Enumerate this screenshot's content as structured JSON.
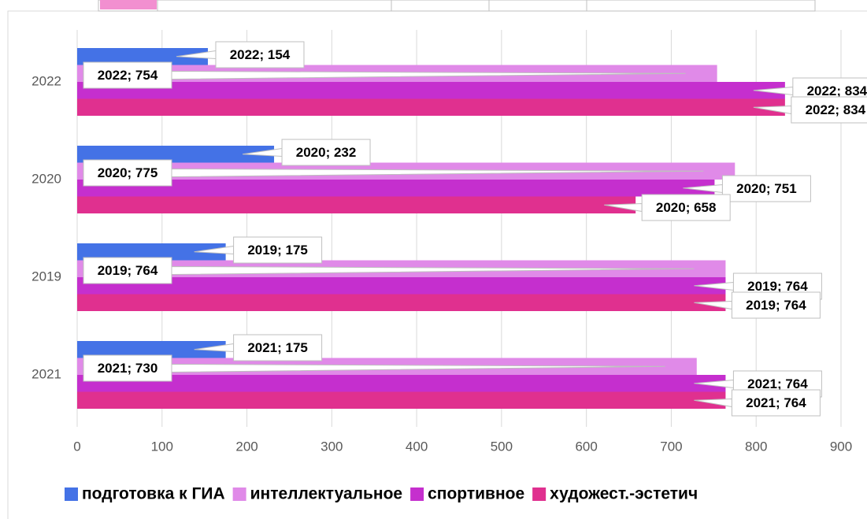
{
  "chart_data": {
    "type": "bar",
    "orientation": "horizontal",
    "categories": [
      "2022",
      "2020",
      "2019",
      "2021"
    ],
    "series": [
      {
        "name": "подготовка к ГИА",
        "color": "#4472e6",
        "values": [
          154,
          232,
          175,
          175
        ],
        "value_labels": [
          "2022; 154",
          "2020; 232",
          "2019; 175",
          "2021; 175"
        ]
      },
      {
        "name": "интеллектуальное",
        "color": "#e08ae8",
        "values": [
          754,
          775,
          764,
          730
        ],
        "value_labels": [
          "2022; 754",
          "2020; 775",
          "2019; 764",
          "2021; 730"
        ]
      },
      {
        "name": "спортивное",
        "color": "#c52fce",
        "values": [
          834,
          751,
          764,
          764
        ],
        "value_labels": [
          "2022; 834",
          "2020; 751",
          "2019; 764",
          "2021; 764"
        ]
      },
      {
        "name": "художест.-эстетич",
        "color": "#e0308f",
        "values": [
          834,
          658,
          764,
          764
        ],
        "value_labels": [
          "2022; 834",
          "2020; 658",
          "2019; 764",
          "2021; 764"
        ]
      }
    ],
    "xlim": [
      0,
      900
    ],
    "xticks": [
      0,
      100,
      200,
      300,
      400,
      500,
      600,
      700,
      800,
      900
    ],
    "grid": true,
    "legend": "bottom"
  }
}
